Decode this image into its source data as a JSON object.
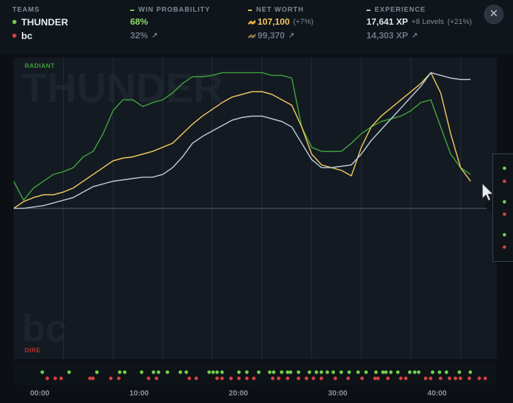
{
  "header": {
    "teams_label": "TEAMS",
    "win_label": "WIN PROBABILITY",
    "networth_label": "NET WORTH",
    "xp_label": "EXPERIENCE",
    "team_a": {
      "name": "THUNDER",
      "color": "#6fcf4c",
      "win": "68%",
      "networth": "107,100",
      "networth_delta": "(+7%)",
      "xp": "17,641 XP",
      "xp_levels": "+8 Levels",
      "xp_delta": "(+21%)"
    },
    "team_b": {
      "name": "bc",
      "color": "#d64242",
      "win": "32%",
      "networth": "99,370",
      "xp": "14,303 XP"
    },
    "arrow_glyph": "↗",
    "close_glyph": "✕"
  },
  "chart": {
    "radiant_label": "RADIANT",
    "dire_label": "DIRE",
    "radiant_watermark": "THUNDER",
    "dire_watermark": "bc",
    "time_ticks": [
      "00:00",
      "10:00",
      "20:00",
      "30:00",
      "40:00"
    ]
  },
  "chart_data": {
    "type": "line",
    "x_minutes": [
      0,
      1,
      2,
      3,
      4,
      5,
      6,
      7,
      8,
      9,
      10,
      11,
      12,
      13,
      14,
      15,
      16,
      17,
      18,
      19,
      20,
      21,
      22,
      23,
      24,
      25,
      26,
      27,
      28,
      29,
      30,
      31,
      32,
      33,
      34,
      35,
      36,
      37,
      38,
      39,
      40,
      41,
      42,
      43,
      44,
      45,
      46
    ],
    "series": [
      {
        "color": "#3f9e3a",
        "values": [
          0.2,
          0.06,
          0.15,
          0.2,
          0.25,
          0.27,
          0.3,
          0.38,
          0.42,
          0.55,
          0.72,
          0.8,
          0.8,
          0.75,
          0.78,
          0.8,
          0.85,
          0.92,
          0.97,
          0.97,
          0.98,
          1.0,
          1.0,
          1.0,
          1.0,
          1.0,
          0.98,
          0.98,
          0.96,
          0.6,
          0.45,
          0.42,
          0.42,
          0.42,
          0.48,
          0.55,
          0.6,
          0.64,
          0.66,
          0.68,
          0.72,
          0.78,
          0.8,
          0.6,
          0.4,
          0.3,
          0.25
        ]
      },
      {
        "color": "#e8c35a",
        "values": [
          0.0,
          0.05,
          0.08,
          0.1,
          0.1,
          0.12,
          0.15,
          0.2,
          0.25,
          0.3,
          0.35,
          0.37,
          0.38,
          0.4,
          0.42,
          0.45,
          0.48,
          0.55,
          0.62,
          0.68,
          0.73,
          0.78,
          0.82,
          0.84,
          0.86,
          0.86,
          0.84,
          0.8,
          0.76,
          0.6,
          0.4,
          0.32,
          0.3,
          0.28,
          0.24,
          0.45,
          0.6,
          0.68,
          0.74,
          0.8,
          0.86,
          0.92,
          1.0,
          0.85,
          0.55,
          0.3,
          0.2
        ]
      },
      {
        "color": "#b9c6d6",
        "values": [
          0.0,
          0.0,
          0.01,
          0.02,
          0.04,
          0.06,
          0.08,
          0.12,
          0.16,
          0.18,
          0.2,
          0.21,
          0.22,
          0.23,
          0.23,
          0.25,
          0.3,
          0.38,
          0.48,
          0.53,
          0.57,
          0.61,
          0.65,
          0.67,
          0.68,
          0.68,
          0.66,
          0.64,
          0.6,
          0.48,
          0.36,
          0.3,
          0.3,
          0.31,
          0.32,
          0.4,
          0.5,
          0.58,
          0.66,
          0.74,
          0.82,
          0.9,
          1.0,
          0.98,
          0.96,
          0.95,
          0.95
        ]
      }
    ],
    "x_ticks": [
      "00:00",
      "10:00",
      "20:00",
      "30:00",
      "40:00"
    ]
  },
  "events": {
    "radiant_minutes": [
      1.5,
      4.2,
      7,
      9.3,
      9.8,
      11.5,
      12.7,
      13.2,
      14.1,
      15.4,
      16,
      18.3,
      18.7,
      19.1,
      19.6,
      21.3,
      22.1,
      23.3,
      24.4,
      24.8,
      25.6,
      26.2,
      26.5,
      27.3,
      28.4,
      29.1,
      29.6,
      30.2,
      30.8,
      31.6,
      32.4,
      33.3,
      34.1,
      35.1,
      35.8,
      36.1,
      36.6,
      37.3,
      38.5,
      39,
      39.4,
      40.8,
      41.5,
      42.2,
      43.5,
      44.6
    ],
    "dire_minutes": [
      2,
      2.8,
      3.4,
      6.3,
      6.6,
      8.4,
      9.2,
      12.2,
      13,
      16.3,
      17,
      19.1,
      19.6,
      20.5,
      21.3,
      22.1,
      22.8,
      24.7,
      25.3,
      26.2,
      27.3,
      28.1,
      28.8,
      29.6,
      31,
      32.3,
      33.7,
      35,
      35.3,
      36.3,
      37.6,
      38.1,
      40.1,
      40.6,
      41.6,
      42.5,
      43.1,
      43.6,
      44.5,
      45.5,
      46.1
    ]
  }
}
